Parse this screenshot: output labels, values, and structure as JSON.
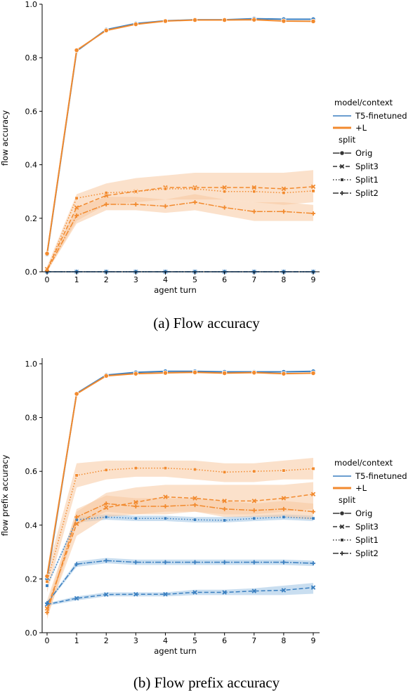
{
  "palette": {
    "T5-finetuned": "#3a7fc0",
    "+L": "#f28a2e",
    "band_orange": "#f7c9a0",
    "band_blue": "#9cc3e4"
  },
  "legend": {
    "hue_title": "model/context",
    "hue_items": [
      "T5-finetuned",
      "+L"
    ],
    "style_title": "split",
    "style_items": [
      "Orig",
      "Split3",
      "Split1",
      "Split2"
    ]
  },
  "chart_data": [
    {
      "type": "line",
      "caption": "(a) Flow accuracy",
      "xlabel": "agent turn",
      "ylabel": "flow accuracy",
      "x": [
        0,
        1,
        2,
        3,
        4,
        5,
        6,
        7,
        8,
        9
      ],
      "xticks": [
        "0",
        "1",
        "2",
        "3",
        "4",
        "5",
        "6",
        "7",
        "8",
        "9"
      ],
      "yticks": [
        "0.0",
        "0.2",
        "0.4",
        "0.6",
        "0.8",
        "1.0"
      ],
      "ylim": [
        0,
        1.0
      ],
      "grid": false,
      "legend_position": "right",
      "series": [
        {
          "name": "T5-finetuned",
          "split": "Orig",
          "values": [
            0.065,
            0.825,
            0.905,
            0.928,
            0.938,
            0.942,
            0.942,
            0.946,
            0.944,
            0.944
          ]
        },
        {
          "name": "+L",
          "split": "Orig",
          "values": [
            0.068,
            0.828,
            0.902,
            0.925,
            0.937,
            0.941,
            0.941,
            0.942,
            0.937,
            0.936
          ]
        },
        {
          "name": "T5-finetuned",
          "split": "Split3",
          "values": [
            0.0,
            0.0,
            0.0,
            0.0,
            0.0,
            0.0,
            0.0,
            0.0,
            0.0,
            0.0
          ]
        },
        {
          "name": "T5-finetuned",
          "split": "Split1",
          "values": [
            0.0,
            0.0,
            0.0,
            0.0,
            0.0,
            0.0,
            0.0,
            0.0,
            0.0,
            0.0
          ]
        },
        {
          "name": "T5-finetuned",
          "split": "Split2",
          "values": [
            0.0,
            0.0,
            0.0,
            0.0,
            0.0,
            0.0,
            0.0,
            0.0,
            0.0,
            0.0
          ]
        },
        {
          "name": "+L",
          "split": "Split3",
          "values": [
            0.01,
            0.24,
            0.285,
            0.3,
            0.315,
            0.315,
            0.315,
            0.315,
            0.31,
            0.318
          ],
          "band": [
            [
              0.0,
              0.02
            ],
            [
              0.19,
              0.29
            ],
            [
              0.25,
              0.33
            ],
            [
              0.26,
              0.35
            ],
            [
              0.27,
              0.36
            ],
            [
              0.27,
              0.37
            ],
            [
              0.27,
              0.37
            ],
            [
              0.26,
              0.37
            ],
            [
              0.25,
              0.37
            ],
            [
              0.26,
              0.38
            ]
          ]
        },
        {
          "name": "+L",
          "split": "Split1",
          "values": [
            0.005,
            0.275,
            0.295,
            0.3,
            0.31,
            0.31,
            0.3,
            0.3,
            0.295,
            0.302
          ]
        },
        {
          "name": "+L",
          "split": "Split2",
          "values": [
            0.005,
            0.21,
            0.252,
            0.252,
            0.245,
            0.26,
            0.24,
            0.225,
            0.225,
            0.218
          ],
          "band": [
            [
              0.0,
              0.01
            ],
            [
              0.18,
              0.24
            ],
            [
              0.23,
              0.28
            ],
            [
              0.23,
              0.28
            ],
            [
              0.22,
              0.27
            ],
            [
              0.23,
              0.29
            ],
            [
              0.21,
              0.27
            ],
            [
              0.19,
              0.26
            ],
            [
              0.19,
              0.26
            ],
            [
              0.19,
              0.25
            ]
          ]
        }
      ]
    },
    {
      "type": "line",
      "caption": "(b) Flow prefix accuracy",
      "xlabel": "agent turn",
      "ylabel": "flow prefix accuracy",
      "x": [
        0,
        1,
        2,
        3,
        4,
        5,
        6,
        7,
        8,
        9
      ],
      "xticks": [
        "0",
        "1",
        "2",
        "3",
        "4",
        "5",
        "6",
        "7",
        "8",
        "9"
      ],
      "yticks": [
        "0.0",
        "0.2",
        "0.4",
        "0.6",
        "0.8",
        "1.0"
      ],
      "ylim": [
        0,
        1.0
      ],
      "grid": false,
      "legend_position": "right",
      "series": [
        {
          "name": "T5-finetuned",
          "split": "Orig",
          "values": [
            0.2,
            0.89,
            0.958,
            0.968,
            0.972,
            0.972,
            0.97,
            0.97,
            0.97,
            0.972
          ]
        },
        {
          "name": "+L",
          "split": "Orig",
          "values": [
            0.21,
            0.888,
            0.955,
            0.963,
            0.966,
            0.968,
            0.965,
            0.967,
            0.963,
            0.965
          ]
        },
        {
          "name": "T5-finetuned",
          "split": "Split3",
          "values": [
            0.105,
            0.128,
            0.142,
            0.143,
            0.143,
            0.15,
            0.15,
            0.155,
            0.158,
            0.168
          ],
          "band": [
            [
              0.1,
              0.11
            ],
            [
              0.12,
              0.135
            ],
            [
              0.135,
              0.15
            ],
            [
              0.135,
              0.15
            ],
            [
              0.135,
              0.15
            ],
            [
              0.14,
              0.16
            ],
            [
              0.14,
              0.16
            ],
            [
              0.14,
              0.165
            ],
            [
              0.14,
              0.175
            ],
            [
              0.145,
              0.185
            ]
          ]
        },
        {
          "name": "T5-finetuned",
          "split": "Split1",
          "values": [
            0.175,
            0.42,
            0.43,
            0.425,
            0.425,
            0.42,
            0.418,
            0.425,
            0.43,
            0.425
          ],
          "band": [
            [
              0.17,
              0.18
            ],
            [
              0.41,
              0.43
            ],
            [
              0.42,
              0.44
            ],
            [
              0.415,
              0.435
            ],
            [
              0.415,
              0.435
            ],
            [
              0.41,
              0.43
            ],
            [
              0.41,
              0.43
            ],
            [
              0.415,
              0.435
            ],
            [
              0.42,
              0.44
            ],
            [
              0.415,
              0.435
            ]
          ]
        },
        {
          "name": "T5-finetuned",
          "split": "Split2",
          "values": [
            0.11,
            0.255,
            0.268,
            0.262,
            0.262,
            0.262,
            0.262,
            0.262,
            0.262,
            0.258
          ],
          "band": [
            [
              0.105,
              0.115
            ],
            [
              0.245,
              0.265
            ],
            [
              0.258,
              0.278
            ],
            [
              0.252,
              0.272
            ],
            [
              0.252,
              0.272
            ],
            [
              0.252,
              0.272
            ],
            [
              0.252,
              0.272
            ],
            [
              0.252,
              0.272
            ],
            [
              0.252,
              0.272
            ],
            [
              0.248,
              0.268
            ]
          ]
        },
        {
          "name": "+L",
          "split": "Split3",
          "values": [
            0.09,
            0.405,
            0.465,
            0.485,
            0.505,
            0.5,
            0.49,
            0.49,
            0.5,
            0.515
          ],
          "band": [
            [
              0.06,
              0.12
            ],
            [
              0.36,
              0.45
            ],
            [
              0.43,
              0.52
            ],
            [
              0.44,
              0.54
            ],
            [
              0.45,
              0.55
            ],
            [
              0.45,
              0.55
            ],
            [
              0.44,
              0.55
            ],
            [
              0.44,
              0.55
            ],
            [
              0.45,
              0.55
            ],
            [
              0.46,
              0.56
            ]
          ]
        },
        {
          "name": "+L",
          "split": "Split1",
          "values": [
            0.19,
            0.585,
            0.605,
            0.612,
            0.612,
            0.607,
            0.597,
            0.6,
            0.603,
            0.61
          ],
          "band": [
            [
              0.15,
              0.23
            ],
            [
              0.54,
              0.63
            ],
            [
              0.57,
              0.64
            ],
            [
              0.58,
              0.64
            ],
            [
              0.58,
              0.64
            ],
            [
              0.57,
              0.64
            ],
            [
              0.56,
              0.63
            ],
            [
              0.56,
              0.63
            ],
            [
              0.57,
              0.64
            ],
            [
              0.57,
              0.65
            ]
          ]
        },
        {
          "name": "+L",
          "split": "Split2",
          "values": [
            0.075,
            0.43,
            0.48,
            0.47,
            0.47,
            0.475,
            0.46,
            0.455,
            0.46,
            0.45
          ],
          "band": [
            [
              0.05,
              0.1
            ],
            [
              0.4,
              0.46
            ],
            [
              0.45,
              0.51
            ],
            [
              0.44,
              0.5
            ],
            [
              0.44,
              0.5
            ],
            [
              0.45,
              0.5
            ],
            [
              0.43,
              0.49
            ],
            [
              0.43,
              0.48
            ],
            [
              0.43,
              0.49
            ],
            [
              0.42,
              0.48
            ]
          ]
        }
      ]
    }
  ]
}
